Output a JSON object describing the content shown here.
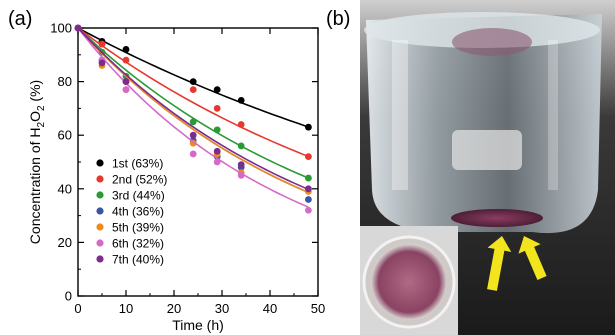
{
  "panels": {
    "a_label": "(a)",
    "b_label": "(b)"
  },
  "chart_data": {
    "type": "scatter",
    "xlabel": "Time (h)",
    "ylabel_parts": [
      "Concentration of H",
      "2",
      "O",
      "2",
      " (%)"
    ],
    "xlim": [
      0,
      50
    ],
    "ylim": [
      0,
      100
    ],
    "x_ticks": [
      0,
      10,
      20,
      30,
      40,
      50
    ],
    "y_ticks": [
      0,
      20,
      40,
      60,
      80,
      100
    ],
    "grid": false,
    "legend_position": "bottom-left",
    "x": [
      0,
      5,
      10,
      24,
      29,
      34,
      48
    ],
    "series": [
      {
        "name": "1st (63%)",
        "color": "#000000",
        "values": [
          100,
          95,
          92,
          80,
          77,
          73,
          63
        ],
        "fit_k": 0.0096
      },
      {
        "name": "2nd (52%)",
        "color": "#e8372f",
        "values": [
          100,
          94,
          88,
          77,
          70,
          64,
          52
        ],
        "fit_k": 0.0136
      },
      {
        "name": "3rd (44%)",
        "color": "#2a9a36",
        "values": [
          100,
          91,
          82,
          65,
          62,
          56,
          44
        ],
        "fit_k": 0.0171
      },
      {
        "name": "4th (36%)",
        "color": "#3b55a6",
        "values": [
          100,
          88,
          80,
          58,
          52,
          48,
          36
        ],
        "fit_k": 0.0198
      },
      {
        "name": "5th (39%)",
        "color": "#ef8a1c",
        "values": [
          100,
          86,
          77,
          57,
          53,
          46,
          39
        ],
        "fit_k": 0.0198
      },
      {
        "name": "6th (32%)",
        "color": "#d56ac9",
        "values": [
          100,
          88,
          77,
          53,
          50,
          45,
          32
        ],
        "fit_k": 0.023
      },
      {
        "name": "7th (40%)",
        "color": "#7b2c8c",
        "values": [
          100,
          87,
          80,
          60,
          54,
          49,
          40
        ],
        "fit_k": 0.0192
      }
    ]
  },
  "photo": {
    "description_icon": "beaker-photo",
    "arrow_color": "#f2e51d",
    "sediment_color": "#7d3556",
    "inset_color": "#a05a74"
  }
}
